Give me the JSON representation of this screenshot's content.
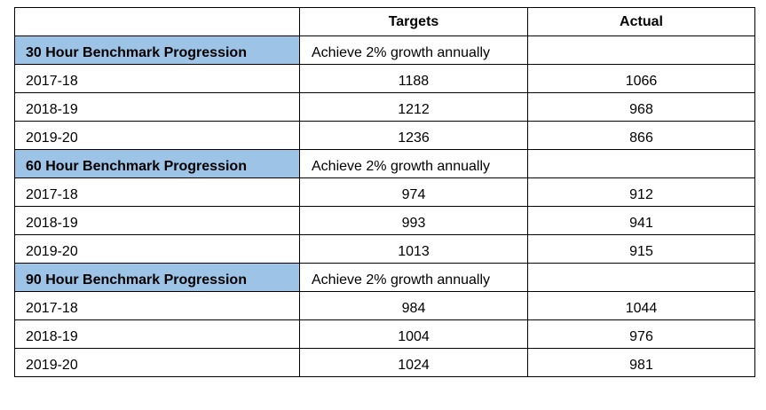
{
  "headers": [
    "",
    "Targets",
    "Actual"
  ],
  "sections": [
    {
      "title": "30 Hour Benchmark Progression",
      "goal": "Achieve 2% growth annually",
      "rows": [
        {
          "year": "2017-18",
          "target": "1188",
          "actual": "1066"
        },
        {
          "year": "2018-19",
          "target": "1212",
          "actual": "968"
        },
        {
          "year": "2019-20",
          "target": "1236",
          "actual": "866"
        }
      ]
    },
    {
      "title": "60 Hour Benchmark Progression",
      "goal": "Achieve 2% growth annually",
      "rows": [
        {
          "year": "2017-18",
          "target": "974",
          "actual": "912"
        },
        {
          "year": "2018-19",
          "target": "993",
          "actual": "941"
        },
        {
          "year": "2019-20",
          "target": "1013",
          "actual": "915"
        }
      ]
    },
    {
      "title": "90 Hour Benchmark Progression",
      "goal": "Achieve 2% growth annually",
      "rows": [
        {
          "year": "2017-18",
          "target": "984",
          "actual": "1044"
        },
        {
          "year": "2018-19",
          "target": "1004",
          "actual": "976"
        },
        {
          "year": "2019-20",
          "target": "1024",
          "actual": "981"
        }
      ]
    }
  ],
  "colors": {
    "section_fill": "#9dc3e6",
    "border": "#000000"
  }
}
